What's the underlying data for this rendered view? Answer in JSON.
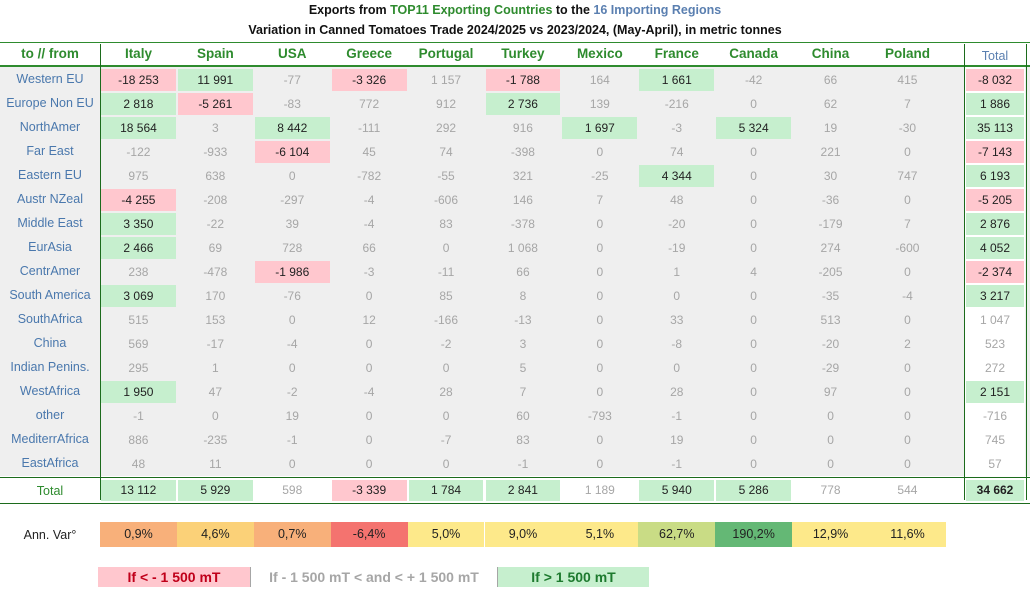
{
  "title": {
    "line1_prefix": "Exports from ",
    "line1_green": "TOP11 Exporting Countries",
    "line1_mid": " to the ",
    "line1_blue": "16 Importing Regions",
    "line2": "Variation in Canned Tomatoes Trade 2024/2025 vs 2023/2024, (May-April), in metric tonnes"
  },
  "corner_label": "to // from",
  "total_label": "Total",
  "columns": [
    "Italy",
    "Spain",
    "USA",
    "Greece",
    "Portugal",
    "Turkey",
    "Mexico",
    "France",
    "Canada",
    "China",
    "Poland"
  ],
  "rows": [
    {
      "region": "Western EU",
      "values": [
        "-18 253",
        "11 991",
        "-77",
        "-3 326",
        "1 157",
        "-1 788",
        "164",
        "1 661",
        "-42",
        "66",
        "415"
      ],
      "total": "-8 032"
    },
    {
      "region": "Europe Non EU",
      "values": [
        "2 818",
        "-5 261",
        "-83",
        "772",
        "912",
        "2 736",
        "139",
        "-216",
        "0",
        "62",
        "7"
      ],
      "total": "1 886"
    },
    {
      "region": "NorthAmer",
      "values": [
        "18 564",
        "3",
        "8 442",
        "-111",
        "292",
        "916",
        "1 697",
        "-3",
        "5 324",
        "19",
        "-30"
      ],
      "total": "35 113"
    },
    {
      "region": "Far East",
      "values": [
        "-122",
        "-933",
        "-6 104",
        "45",
        "74",
        "-398",
        "0",
        "74",
        "0",
        "221",
        "0"
      ],
      "total": "-7 143"
    },
    {
      "region": "Eastern EU",
      "values": [
        "975",
        "638",
        "0",
        "-782",
        "-55",
        "321",
        "-25",
        "4 344",
        "0",
        "30",
        "747"
      ],
      "total": "6 193"
    },
    {
      "region": "Austr NZeal",
      "values": [
        "-4 255",
        "-208",
        "-297",
        "-4",
        "-606",
        "146",
        "7",
        "48",
        "0",
        "-36",
        "0"
      ],
      "total": "-5 205"
    },
    {
      "region": "Middle East",
      "values": [
        "3 350",
        "-22",
        "39",
        "-4",
        "83",
        "-378",
        "0",
        "-20",
        "0",
        "-179",
        "7"
      ],
      "total": "2 876"
    },
    {
      "region": "EurAsia",
      "values": [
        "2 466",
        "69",
        "728",
        "66",
        "0",
        "1 068",
        "0",
        "-19",
        "0",
        "274",
        "-600"
      ],
      "total": "4 052"
    },
    {
      "region": "CentrAmer",
      "values": [
        "238",
        "-478",
        "-1 986",
        "-3",
        "-11",
        "66",
        "0",
        "1",
        "4",
        "-205",
        "0"
      ],
      "total": "-2 374"
    },
    {
      "region": "South America",
      "values": [
        "3 069",
        "170",
        "-76",
        "0",
        "85",
        "8",
        "0",
        "0",
        "0",
        "-35",
        "-4"
      ],
      "total": "3 217"
    },
    {
      "region": "SouthAfrica",
      "values": [
        "515",
        "153",
        "0",
        "12",
        "-166",
        "-13",
        "0",
        "33",
        "0",
        "513",
        "0"
      ],
      "total": "1 047"
    },
    {
      "region": "China",
      "values": [
        "569",
        "-17",
        "-4",
        "0",
        "-2",
        "3",
        "0",
        "-8",
        "0",
        "-20",
        "2"
      ],
      "total": "523"
    },
    {
      "region": "Indian Penins.",
      "values": [
        "295",
        "1",
        "0",
        "0",
        "0",
        "5",
        "0",
        "0",
        "0",
        "-29",
        "0"
      ],
      "total": "272"
    },
    {
      "region": "WestAfrica",
      "values": [
        "1 950",
        "47",
        "-2",
        "-4",
        "28",
        "7",
        "0",
        "28",
        "0",
        "97",
        "0"
      ],
      "total": "2 151"
    },
    {
      "region": "other",
      "values": [
        "-1",
        "0",
        "19",
        "0",
        "0",
        "60",
        "-793",
        "-1",
        "0",
        "0",
        "0"
      ],
      "total": "-716"
    },
    {
      "region": "MediterrAfrica",
      "values": [
        "886",
        "-235",
        "-1",
        "0",
        "-7",
        "83",
        "0",
        "19",
        "0",
        "0",
        "0"
      ],
      "total": "745"
    },
    {
      "region": "EastAfrica",
      "values": [
        "48",
        "11",
        "0",
        "0",
        "0",
        "-1",
        "0",
        "-1",
        "0",
        "0",
        "0"
      ],
      "total": "57"
    }
  ],
  "totals_row": {
    "label": "Total",
    "values": [
      "13 112",
      "5 929",
      "598",
      "-3 339",
      "1 784",
      "2 841",
      "1 189",
      "5 940",
      "5 286",
      "778",
      "544"
    ],
    "grand_total": "34 662"
  },
  "annual_variation": {
    "label": "Ann. Var°",
    "values": [
      "0,9%",
      "4,6%",
      "0,7%",
      "-6,4%",
      "5,0%",
      "9,0%",
      "5,1%",
      "62,7%",
      "190,2%",
      "12,9%",
      "11,6%"
    ],
    "colors": [
      "#f8b07a",
      "#fbd178",
      "#f8b07a",
      "#f4736f",
      "#fde98a",
      "#fde98a",
      "#fde98a",
      "#c9dc85",
      "#64b875",
      "#fde98a",
      "#fde98a"
    ]
  },
  "legend": [
    {
      "text": "If < - 1 500 mT",
      "bg": "#ffc7ce",
      "color": "#c0001a"
    },
    {
      "text": "If - 1 500 mT < and < + 1 500 mT",
      "bg": "#ffffff",
      "color": "#a6a6a6"
    },
    {
      "text": "If > 1 500 mT",
      "bg": "#c6efce",
      "color": "#1d7a2e"
    }
  ],
  "colors": {
    "green_text": "#2e8b2e",
    "blue_text": "#5a7fb0",
    "positive_bg": "#c6efce",
    "negative_bg": "#ffc7ce",
    "grey_text": "#a6a6a6"
  }
}
